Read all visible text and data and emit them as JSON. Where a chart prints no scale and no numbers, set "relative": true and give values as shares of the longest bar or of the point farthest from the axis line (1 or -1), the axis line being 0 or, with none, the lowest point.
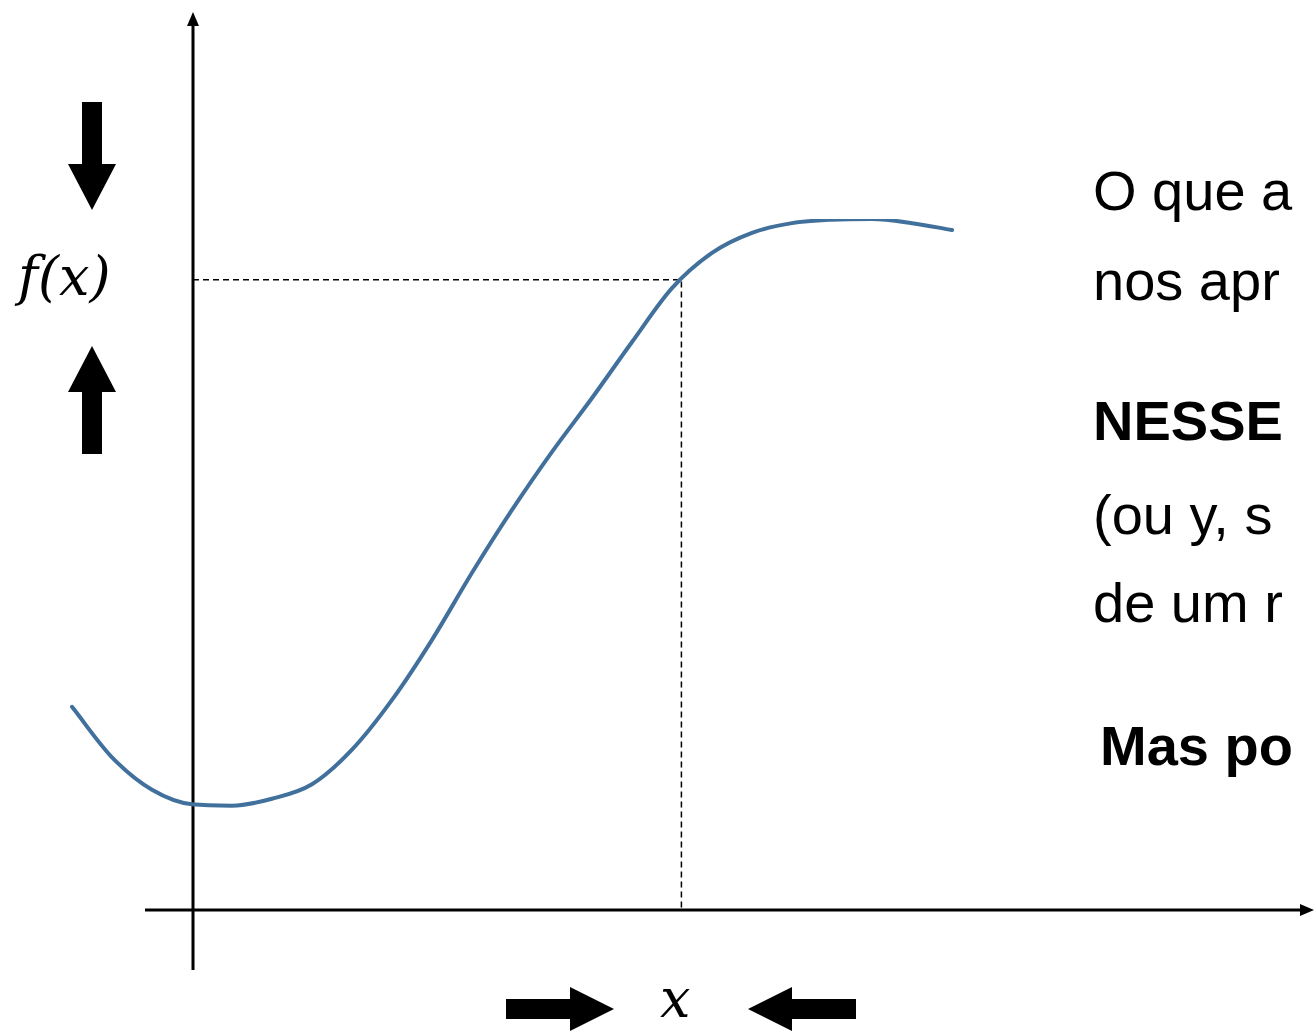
{
  "chart_data": {
    "type": "line",
    "relative": true,
    "xlabel": "x",
    "ylabel": "f(x)",
    "categories": [
      null,
      null,
      null,
      null,
      null,
      null,
      null,
      null,
      null,
      null,
      null,
      null,
      null,
      null,
      null,
      null,
      null,
      null,
      null,
      null,
      null,
      null,
      null
    ],
    "series": [
      {
        "color": "#41709c",
        "values": [
          0.294,
          0.221,
          0.174,
          0.153,
          0.151,
          0.161,
          0.182,
          0.232,
          0.304,
          0.391,
          0.488,
          0.579,
          0.663,
          0.741,
          0.822,
          0.9,
          0.951,
          0.98,
          0.994,
          0.999,
          1,
          0.994,
          0.984
        ]
      }
    ],
    "marker": "none",
    "line_style": "solid",
    "legend": false,
    "tick_labels": false,
    "ref_lines": [
      {
        "axis": "y",
        "value": 0.912,
        "color": "#000000",
        "line_style": "dashed"
      }
    ],
    "annotations": [
      "O que a",
      "nos apr",
      "NESSE",
      "(ou y, s",
      "de um r",
      "Mas po"
    ]
  }
}
